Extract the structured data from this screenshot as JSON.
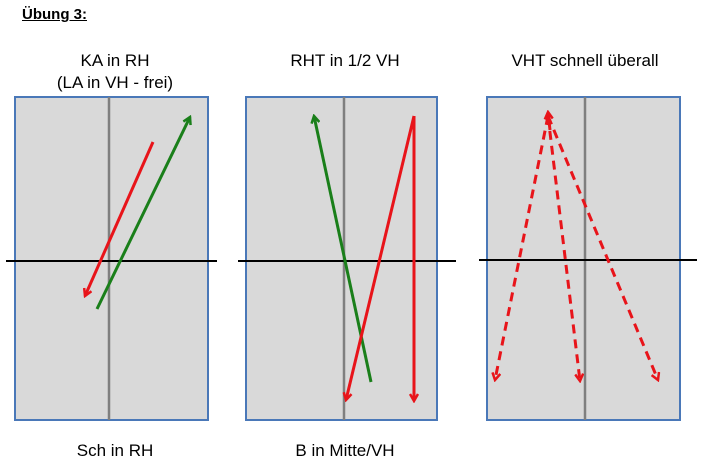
{
  "exercise_title": "Übung 3:",
  "panels": [
    {
      "id": "panel-1",
      "top_label_line1": "KA in RH",
      "top_label_line2": "(LA in VH - frei)",
      "bottom_label": "Sch in RH"
    },
    {
      "id": "panel-2",
      "top_label_line1": "RHT in 1/2 VH",
      "top_label_line2": "",
      "bottom_label": "B in Mitte/VH"
    },
    {
      "id": "panel-3",
      "top_label_line1": "VHT schnell überall",
      "top_label_line2": "",
      "bottom_label": ""
    }
  ],
  "colors": {
    "court_fill": "#d9d9d9",
    "court_border": "#4a78b8",
    "center_line": "#7f7f7f",
    "net_line": "#000000",
    "arrow_red": "#e8141a",
    "arrow_green": "#1a7f1a"
  }
}
